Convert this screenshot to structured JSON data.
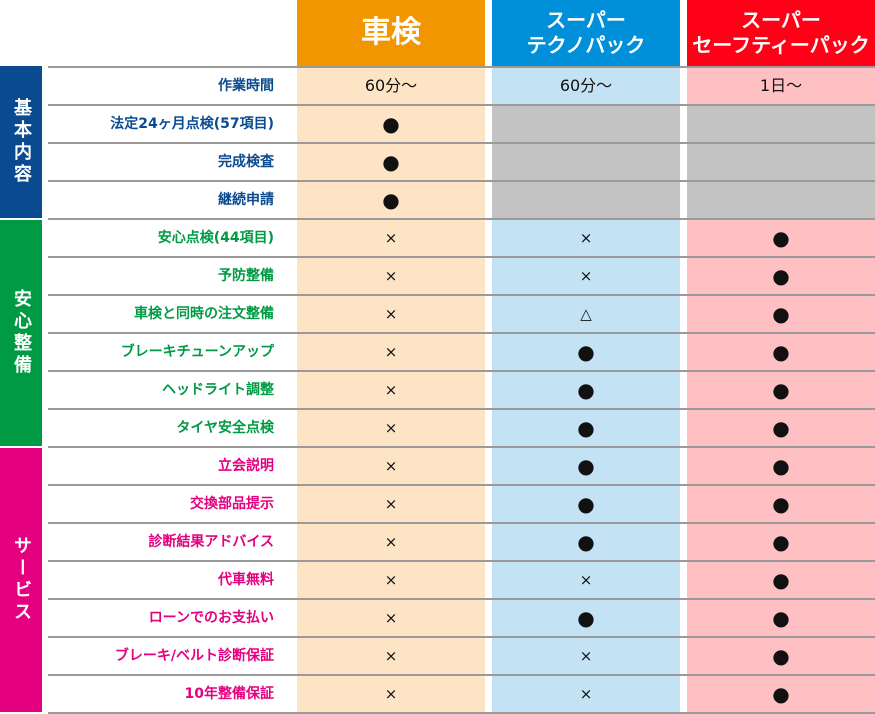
{
  "headers": [
    "車検",
    "スーパー\nテクノパック",
    "スーパー\nセーフティーパック"
  ],
  "colors": {
    "blue": "#0a4a91",
    "green": "#009a44",
    "pink": "#e4007f"
  },
  "categories": [
    {
      "label": "基本内容",
      "color": "#0a4a91",
      "rows": 4
    },
    {
      "label": "安心整備",
      "color": "#009a44",
      "rows": 6
    },
    {
      "label": "サービス",
      "color": "#e4007f",
      "rows": 7
    }
  ],
  "rows": [
    {
      "label": "作業時間",
      "values": [
        "60分〜",
        "60分〜",
        "1日〜"
      ]
    },
    {
      "label": "法定24ヶ月点検(57項目)",
      "values": [
        "●",
        "",
        ""
      ]
    },
    {
      "label": "完成検査",
      "values": [
        "●",
        "",
        ""
      ]
    },
    {
      "label": "継続申請",
      "values": [
        "●",
        "",
        ""
      ]
    },
    {
      "label": "安心点検(44項目)",
      "values": [
        "×",
        "×",
        "●"
      ]
    },
    {
      "label": "予防整備",
      "values": [
        "×",
        "×",
        "●"
      ]
    },
    {
      "label": "車検と同時の注文整備",
      "values": [
        "×",
        "△",
        "●"
      ]
    },
    {
      "label": "ブレーキチューンアップ",
      "values": [
        "×",
        "●",
        "●"
      ]
    },
    {
      "label": "ヘッドライト調整",
      "values": [
        "×",
        "●",
        "●"
      ]
    },
    {
      "label": "タイヤ安全点検",
      "values": [
        "×",
        "●",
        "●"
      ]
    },
    {
      "label": "立会説明",
      "values": [
        "×",
        "●",
        "●"
      ]
    },
    {
      "label": "交換部品提示",
      "values": [
        "×",
        "●",
        "●"
      ]
    },
    {
      "label": "診断結果アドバイス",
      "values": [
        "×",
        "●",
        "●"
      ]
    },
    {
      "label": "代車無料",
      "values": [
        "×",
        "×",
        "●"
      ]
    },
    {
      "label": "ローンでのお支払い",
      "values": [
        "×",
        "●",
        "●"
      ]
    },
    {
      "label": "ブレーキ/ベルト診断保証",
      "values": [
        "×",
        "×",
        "●"
      ]
    },
    {
      "label": "10年整備保証",
      "values": [
        "×",
        "×",
        "●"
      ]
    }
  ]
}
